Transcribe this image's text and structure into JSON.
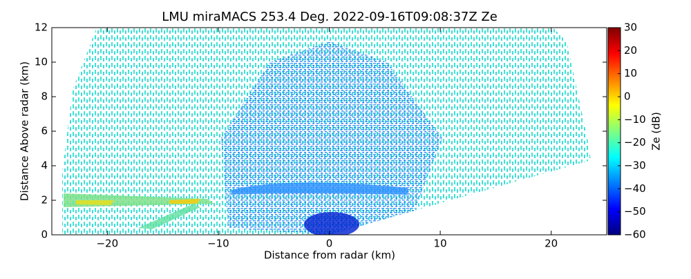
{
  "chart_data": {
    "type": "heatmap",
    "title": "LMU miraMACS 253.4 Deg. 2022-09-16T09:08:37Z  Ze",
    "xlabel": "Distance from radar (km)",
    "ylabel": "Distance Above radar  (km)",
    "xlim": [
      -25,
      25
    ],
    "ylim": [
      0,
      12
    ],
    "xticks": [
      {
        "value": -20,
        "label": "−20"
      },
      {
        "value": -10,
        "label": "−10"
      },
      0,
      10,
      20
    ],
    "yticks": [
      0,
      2,
      4,
      6,
      8,
      10,
      12
    ],
    "colormap": "jet",
    "colorbar_label": "Ze (dB)",
    "clim": [
      -60,
      30
    ],
    "cticks": [
      {
        "value": -60,
        "label": "−60"
      },
      {
        "value": -50,
        "label": "−50"
      },
      {
        "value": -40,
        "label": "−40"
      },
      {
        "value": -30,
        "label": "−30"
      },
      {
        "value": -20,
        "label": "−20"
      },
      {
        "value": -10,
        "label": "−10"
      },
      0,
      10,
      20,
      30
    ]
  }
}
